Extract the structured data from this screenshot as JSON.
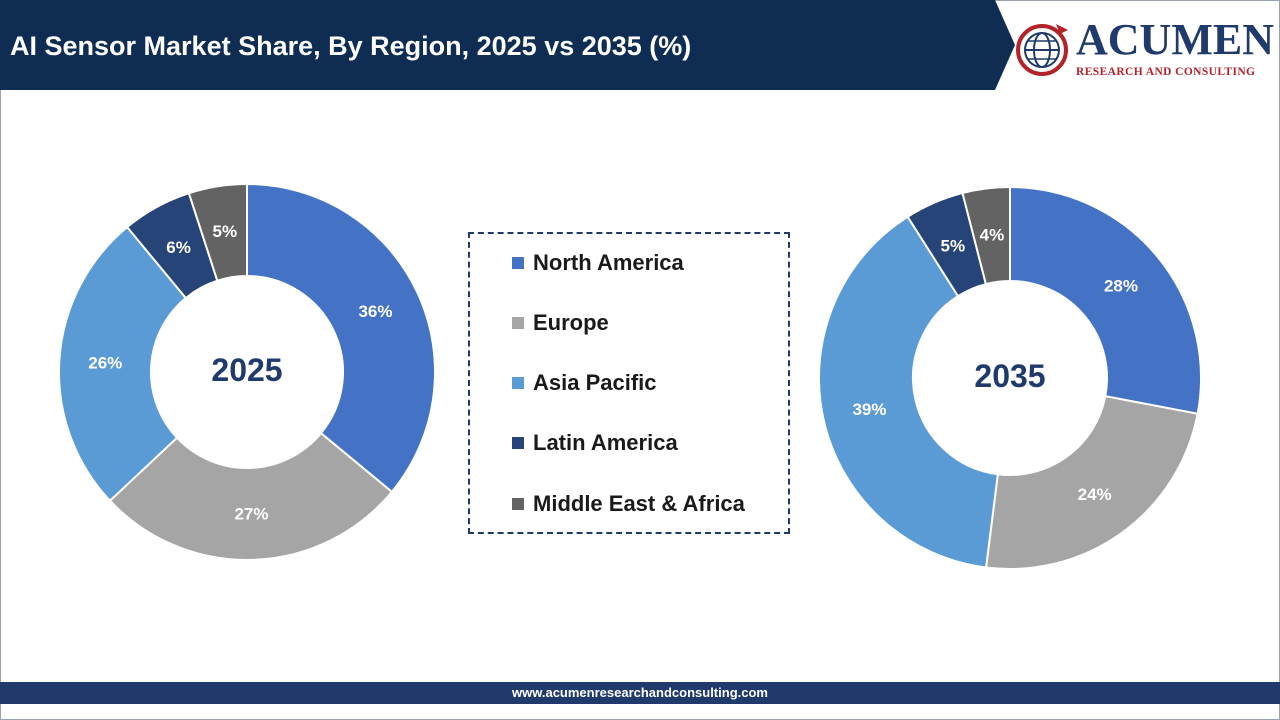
{
  "header": {
    "title": "AI Sensor Market Share, By Region, 2025 vs 2035 (%)"
  },
  "logo": {
    "word": "ACUMEN",
    "subtitle": "RESEARCH AND CONSULTING"
  },
  "colors": {
    "header_band": "#0f2d52",
    "title_text": "#ffffff",
    "center_label": "#1f3a6b",
    "footer_band": "#1f3a6b"
  },
  "legend": {
    "items": [
      {
        "label": "North America",
        "color": "#4472c4"
      },
      {
        "label": "Europe",
        "color": "#a5a5a5"
      },
      {
        "label": "Asia Pacific",
        "color": "#5b9bd5"
      },
      {
        "label": "Latin America",
        "color": "#264478"
      },
      {
        "label": "Middle East & Africa",
        "color": "#636363"
      }
    ]
  },
  "chart_data": [
    {
      "type": "pie",
      "donut": true,
      "center_label": "2025",
      "categories": [
        "North America",
        "Europe",
        "Asia Pacific",
        "Latin America",
        "Middle East & Africa"
      ],
      "values": [
        36,
        27,
        26,
        6,
        5
      ],
      "data_labels": [
        "36%",
        "27%",
        "26%",
        "6%",
        "5%"
      ],
      "colors": [
        "#4472c4",
        "#a5a5a5",
        "#5b9bd5",
        "#264478",
        "#636363"
      ]
    },
    {
      "type": "pie",
      "donut": true,
      "center_label": "2035",
      "categories": [
        "North America",
        "Europe",
        "Asia Pacific",
        "Latin America",
        "Middle East & Africa"
      ],
      "values": [
        28,
        24,
        39,
        5,
        4
      ],
      "data_labels": [
        "28%",
        "24%",
        "39%",
        "5%",
        "4%"
      ],
      "colors": [
        "#4472c4",
        "#a5a5a5",
        "#5b9bd5",
        "#264478",
        "#636363"
      ]
    }
  ],
  "footer": {
    "url": "www.acumenresearchandconsulting.com"
  }
}
